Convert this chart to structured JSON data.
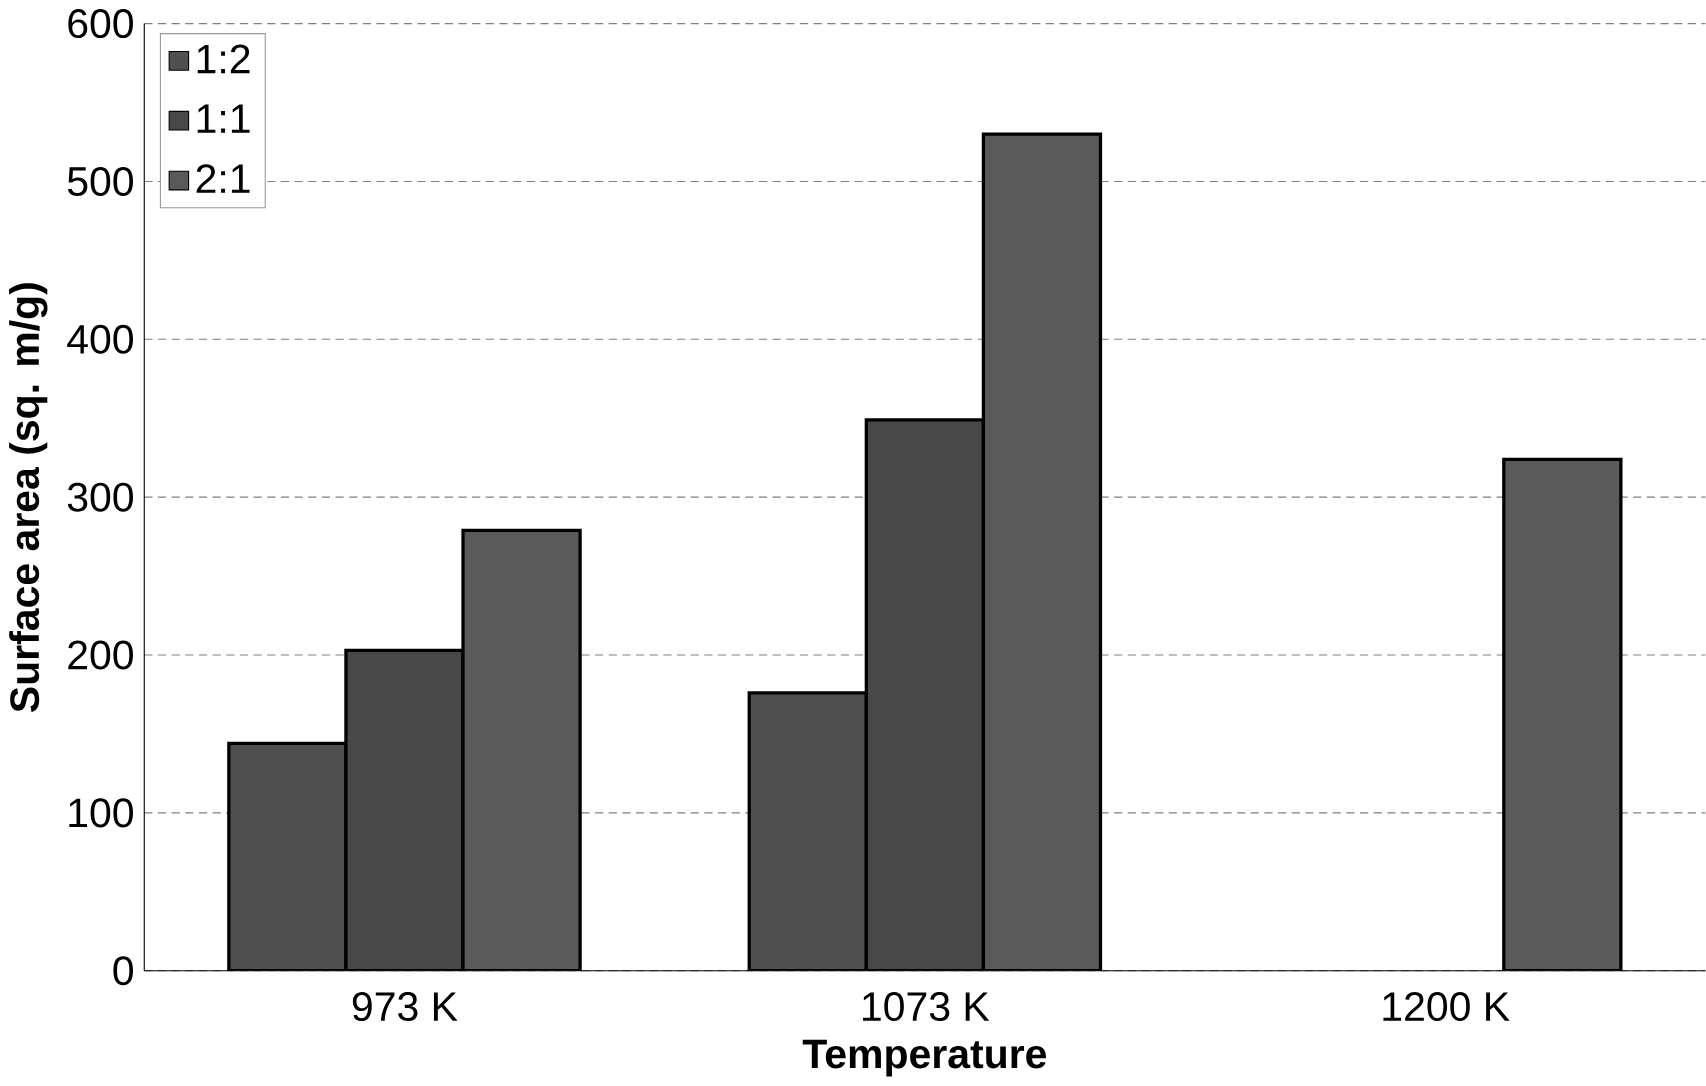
{
  "chart_data": {
    "type": "bar",
    "xlabel": "Temperature",
    "ylabel": "Surface area (sq. m/g)",
    "categories": [
      "973 K",
      "1073 K",
      "1200 K"
    ],
    "series": [
      {
        "name": "1:2",
        "color": "#505050",
        "values": [
          144,
          176,
          null
        ]
      },
      {
        "name": "1:1",
        "color": "#484848",
        "values": [
          203,
          349,
          null
        ]
      },
      {
        "name": "2:1",
        "color": "#5a5a5a",
        "values": [
          279,
          530,
          324
        ]
      }
    ],
    "ylim": [
      0,
      600
    ],
    "yticks": [
      0,
      100,
      200,
      300,
      400,
      500,
      600
    ],
    "grid": "y",
    "legend": "top left"
  }
}
